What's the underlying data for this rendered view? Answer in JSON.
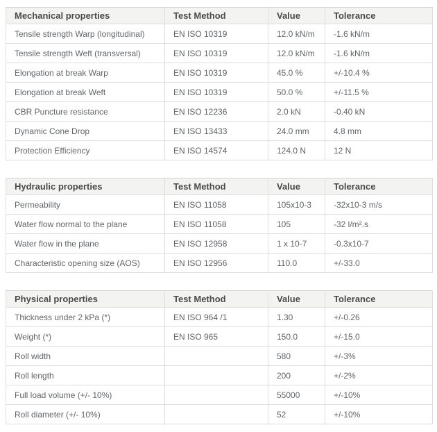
{
  "colors": {
    "page_bg": "#ffffff",
    "header_bg": "#f3f3f1",
    "header_text": "#4a4a4a",
    "body_text": "#606468",
    "border": "#ddddda",
    "outer_border": "#d3d3d0"
  },
  "tables": [
    {
      "name": "mechanical-properties",
      "columns": [
        "Mechanical properties",
        "Test Method",
        "Value",
        "Tolerance"
      ],
      "rows": [
        [
          "Tensile strength Warp (longitudinal)",
          "EN ISO 10319",
          "12.0 kN/m",
          "-1.6 kN/m"
        ],
        [
          "Tensile strength Weft (transversal)",
          "EN ISO 10319",
          "12.0 kN/m",
          "-1.6 kN/m"
        ],
        [
          "Elongation at break Warp",
          "EN ISO 10319",
          "45.0 %",
          "+/-10.4 %"
        ],
        [
          "Elongation at break Weft",
          "EN ISO 10319",
          "50.0 %",
          "+/-11.5 %"
        ],
        [
          "CBR Puncture resistance",
          "EN ISO 12236",
          "2.0 kN",
          "-0.40 kN"
        ],
        [
          "Dynamic Cone Drop",
          "EN ISO 13433",
          "24.0 mm",
          "4.8 mm"
        ],
        [
          "Protection Efficiency",
          "EN ISO 14574",
          "124.0 N",
          "12 N"
        ]
      ]
    },
    {
      "name": "hydraulic-properties",
      "columns": [
        "Hydraulic properties",
        "Test Method",
        "Value",
        "Tolerance"
      ],
      "rows": [
        [
          "Permeability",
          "EN ISO 11058",
          "105x10-3",
          "-32x10-3 m/s"
        ],
        [
          "Water flow normal to the plane",
          "EN ISO 11058",
          "105",
          "-32 l/m².s"
        ],
        [
          "Water flow in the plane",
          "EN ISO 12958",
          "1 x 10-7",
          "-0.3x10-7"
        ],
        [
          "Characteristic opening size (AOS)",
          "EN ISO 12956",
          "110.0",
          "+/-33.0"
        ]
      ]
    },
    {
      "name": "physical-properties",
      "columns": [
        "Physical properties",
        "Test Method",
        "Value",
        "Tolerance"
      ],
      "rows": [
        [
          "Thickness under 2 kPa (*)",
          "EN ISO 964 /1",
          "1.30",
          "+/-0.26"
        ],
        [
          "Weight (*)",
          "EN ISO 965",
          "150.0",
          "+/-15.0"
        ],
        [
          "Roll width",
          "",
          "580",
          "+/-3%"
        ],
        [
          "Roll length",
          "",
          "200",
          "+/-2%"
        ],
        [
          "Full load volume (+/- 10%)",
          "",
          "55000",
          "+/-10%"
        ],
        [
          "Roll diameter (+/- 10%)",
          "",
          "52",
          "+/-10%"
        ]
      ]
    }
  ]
}
